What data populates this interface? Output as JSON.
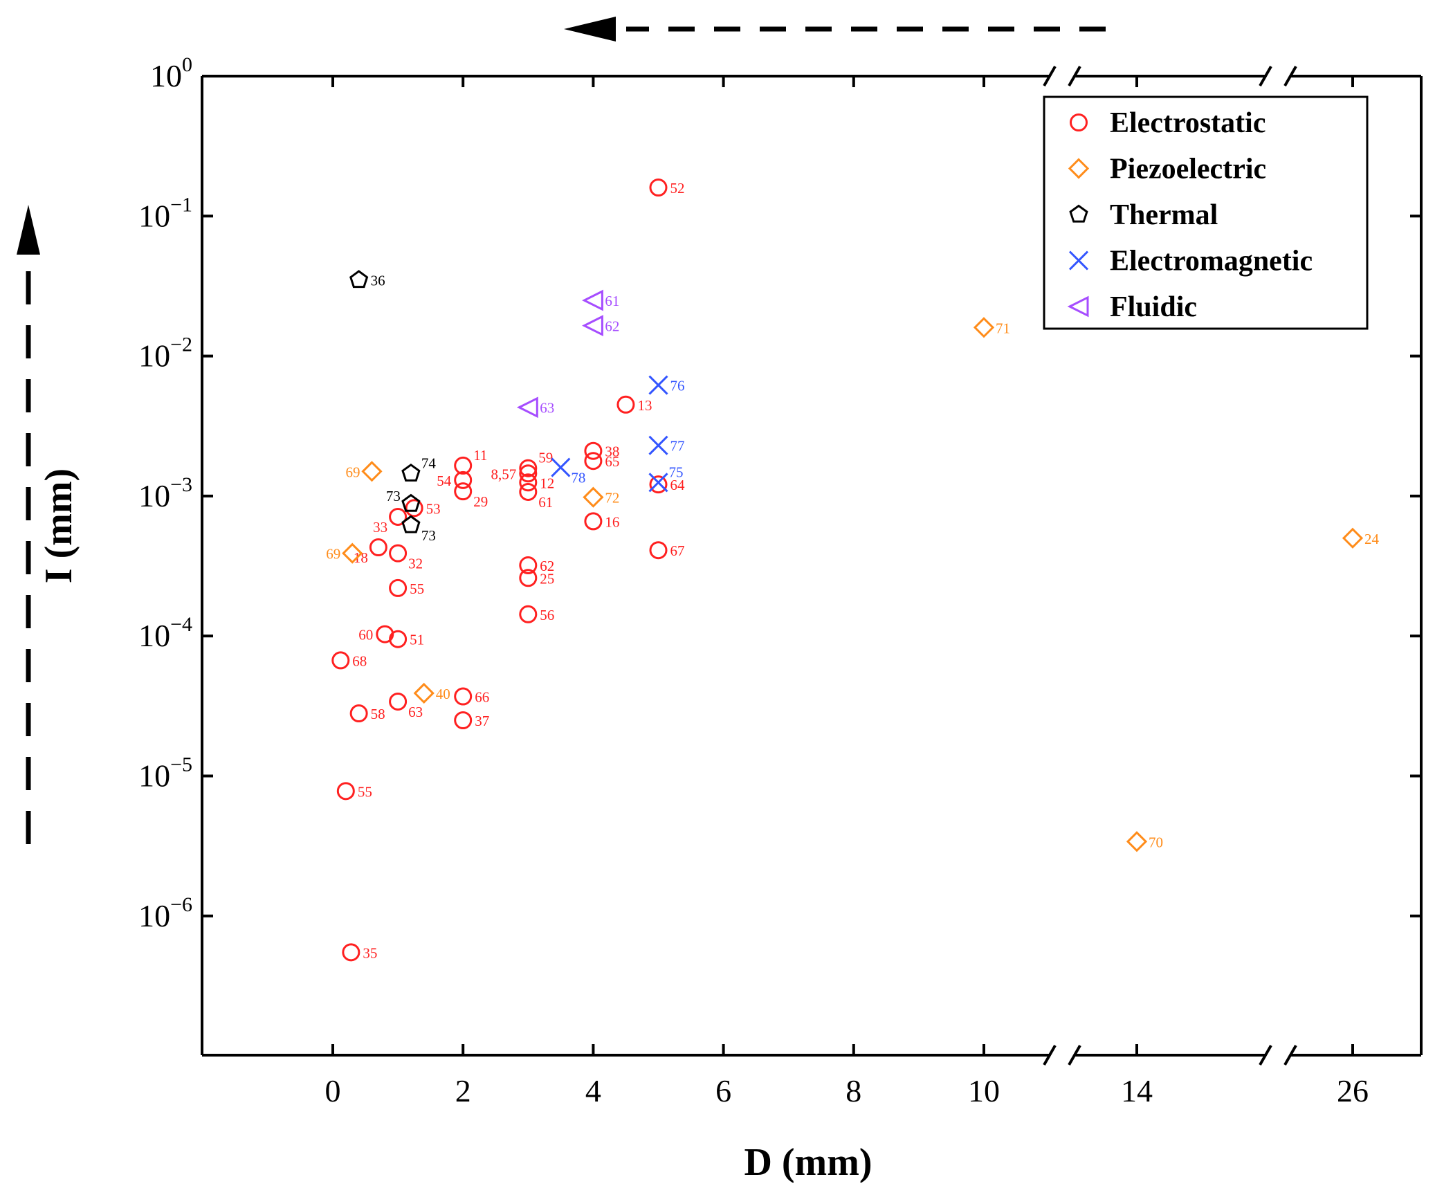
{
  "chart_data": {
    "type": "scatter",
    "xlabel": "D (mm)",
    "ylabel": "I (mm)",
    "yscale": "log",
    "ylim": [
      1e-07,
      1
    ],
    "xlim_segments": [
      [
        -2,
        11
      ],
      [
        14,
        14
      ],
      [
        26,
        26
      ]
    ],
    "x_break_after": [
      11,
      14
    ],
    "x_ticks": [
      {
        "value": 0,
        "label": "0"
      },
      {
        "value": 2,
        "label": "2"
      },
      {
        "value": 4,
        "label": "4"
      },
      {
        "value": 6,
        "label": "6"
      },
      {
        "value": 8,
        "label": "8"
      },
      {
        "value": 10,
        "label": "10"
      },
      {
        "value": 14,
        "label": "14"
      },
      {
        "value": 26,
        "label": "26"
      }
    ],
    "y_ticks": [
      {
        "value": 1,
        "base": "10",
        "exp": "0"
      },
      {
        "value": 0.1,
        "base": "10",
        "exp": "−1"
      },
      {
        "value": 0.01,
        "base": "10",
        "exp": "−2"
      },
      {
        "value": 0.001,
        "base": "10",
        "exp": "−3"
      },
      {
        "value": 0.0001,
        "base": "10",
        "exp": "−4"
      },
      {
        "value": 1e-05,
        "base": "10",
        "exp": "−5"
      },
      {
        "value": 1e-06,
        "base": "10",
        "exp": "−6"
      }
    ],
    "legend_position": "top-right",
    "series": [
      {
        "name": "Electrostatic",
        "marker": "circle",
        "color": "#ff2020",
        "points": [
          {
            "x": 5,
            "y": 0.16,
            "label": "52",
            "anchor": "r"
          },
          {
            "x": 4.5,
            "y": 0.0045,
            "label": "13",
            "anchor": "r"
          },
          {
            "x": 4,
            "y": 0.0021,
            "label": "38",
            "anchor": "r"
          },
          {
            "x": 4,
            "y": 0.00178,
            "label": "65",
            "anchor": "r"
          },
          {
            "x": 4,
            "y": 0.00066,
            "label": "16",
            "anchor": "r"
          },
          {
            "x": 5,
            "y": 0.00121,
            "label": "64",
            "anchor": "r"
          },
          {
            "x": 5,
            "y": 0.00041,
            "label": "67",
            "anchor": "r"
          },
          {
            "x": 3,
            "y": 0.00158,
            "label": "59",
            "anchor": "tr"
          },
          {
            "x": 3,
            "y": 0.00145,
            "label": "8,57",
            "anchor": "l"
          },
          {
            "x": 3,
            "y": 0.00125,
            "label": "12",
            "anchor": "r"
          },
          {
            "x": 3,
            "y": 0.00107,
            "label": "61",
            "anchor": "br"
          },
          {
            "x": 3,
            "y": 0.00032,
            "label": "62",
            "anchor": "r"
          },
          {
            "x": 3,
            "y": 0.00026,
            "label": "25",
            "anchor": "r"
          },
          {
            "x": 3,
            "y": 0.000143,
            "label": "56",
            "anchor": "r"
          },
          {
            "x": 2,
            "y": 0.00165,
            "label": "11",
            "anchor": "tr"
          },
          {
            "x": 2,
            "y": 0.0013,
            "label": "54",
            "anchor": "l"
          },
          {
            "x": 2,
            "y": 0.00108,
            "label": "29",
            "anchor": "br"
          },
          {
            "x": 2,
            "y": 3.7e-05,
            "label": "66",
            "anchor": "r"
          },
          {
            "x": 2,
            "y": 2.5e-05,
            "label": "37",
            "anchor": "r"
          },
          {
            "x": 1.25,
            "y": 0.00082,
            "label": "53",
            "anchor": "r"
          },
          {
            "x": 1,
            "y": 0.00071,
            "label": "33",
            "anchor": "bl"
          },
          {
            "x": 0.7,
            "y": 0.00043,
            "label": "18",
            "anchor": "bl"
          },
          {
            "x": 1,
            "y": 0.00039,
            "label": "32",
            "anchor": "br"
          },
          {
            "x": 1,
            "y": 0.00022,
            "label": "55",
            "anchor": "r"
          },
          {
            "x": 0.8,
            "y": 0.000103,
            "label": "60",
            "anchor": "l"
          },
          {
            "x": 1,
            "y": 9.5e-05,
            "label": "51",
            "anchor": "r"
          },
          {
            "x": 0.12,
            "y": 6.7e-05,
            "label": "68",
            "anchor": "r"
          },
          {
            "x": 0.4,
            "y": 2.8e-05,
            "label": "58",
            "anchor": "r"
          },
          {
            "x": 1,
            "y": 3.4e-05,
            "label": "63",
            "anchor": "br"
          },
          {
            "x": 0.2,
            "y": 7.8e-06,
            "label": "55",
            "anchor": "r"
          },
          {
            "x": 0.28,
            "y": 5.5e-07,
            "label": "35",
            "anchor": "r"
          }
        ]
      },
      {
        "name": "Piezoelectric",
        "marker": "diamond",
        "color": "#ff8c1a",
        "points": [
          {
            "x": 10,
            "y": 0.016,
            "label": "71",
            "anchor": "r"
          },
          {
            "x": 4,
            "y": 0.00098,
            "label": "72",
            "anchor": "r"
          },
          {
            "x": 0.6,
            "y": 0.0015,
            "label": "69",
            "anchor": "l"
          },
          {
            "x": 0.3,
            "y": 0.00039,
            "label": "69",
            "anchor": "l"
          },
          {
            "x": 1.4,
            "y": 3.9e-05,
            "label": "40",
            "anchor": "r"
          },
          {
            "x": 26,
            "y": 0.0005,
            "label": "24",
            "anchor": "r",
            "segment": 2
          },
          {
            "x": 14,
            "y": 3.4e-06,
            "label": "70",
            "anchor": "r",
            "segment": 1
          }
        ]
      },
      {
        "name": "Thermal",
        "marker": "pentagon",
        "color": "#000000",
        "points": [
          {
            "x": 0.4,
            "y": 0.035,
            "label": "36",
            "anchor": "r"
          },
          {
            "x": 1.2,
            "y": 0.00145,
            "label": "74",
            "anchor": "tr"
          },
          {
            "x": 1.2,
            "y": 0.00088,
            "label": "73",
            "anchor": "tl"
          },
          {
            "x": 1.2,
            "y": 0.00062,
            "label": "73",
            "anchor": "br"
          }
        ]
      },
      {
        "name": "Electromagnetic",
        "marker": "x",
        "color": "#3355ff",
        "points": [
          {
            "x": 5,
            "y": 0.0062,
            "label": "76",
            "anchor": "r"
          },
          {
            "x": 5,
            "y": 0.0023,
            "label": "77",
            "anchor": "r"
          },
          {
            "x": 3.5,
            "y": 0.0016,
            "label": "78",
            "anchor": "br"
          },
          {
            "x": 5,
            "y": 0.00125,
            "label": "75",
            "anchor": "tr"
          }
        ]
      },
      {
        "name": "Fluidic",
        "marker": "triangle-left",
        "color": "#a64dff",
        "points": [
          {
            "x": 4,
            "y": 0.025,
            "label": "61",
            "anchor": "r"
          },
          {
            "x": 4,
            "y": 0.0165,
            "label": "62",
            "anchor": "r"
          },
          {
            "x": 3,
            "y": 0.0043,
            "label": "63",
            "anchor": "r"
          }
        ]
      }
    ]
  }
}
